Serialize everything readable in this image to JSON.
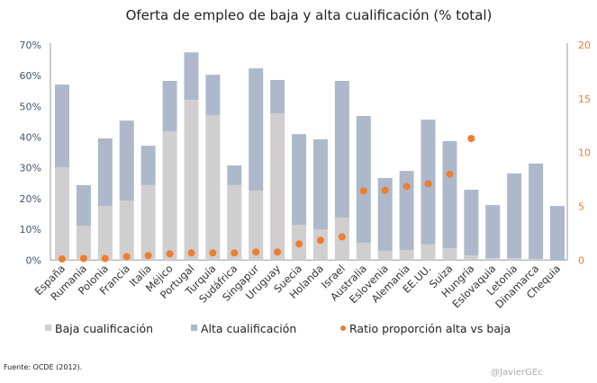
{
  "chart_data": {
    "type": "bar",
    "stacked": true,
    "title": "Oferta de empleo de baja y alta cualificación (% total)",
    "categories": [
      "España",
      "Rumania",
      "Polonia",
      "Francia",
      "Italia",
      "Méjico",
      "Portugal",
      "Turquía",
      "Sudáfrica",
      "Singapur",
      "Uruguay",
      "Suecia",
      "Holanda",
      "Israel",
      "Australia",
      "Eslovenia",
      "Alemania",
      "EE.UU.",
      "Suiza",
      "Hungría",
      "Eslovaquia",
      "Letonia",
      "Dinamarca",
      "Chequia"
    ],
    "series": [
      {
        "name": "Baja cualificación",
        "type": "bar",
        "axis": "left",
        "color": "#d0cece",
        "values": [
          30.2,
          11.2,
          17.6,
          19.4,
          24.4,
          41.9,
          52.1,
          47.2,
          24.4,
          22.6,
          47.7,
          11.5,
          10.0,
          13.8,
          5.6,
          3.0,
          3.3,
          5.1,
          3.9,
          1.5,
          0.7,
          0.7,
          0.4,
          0.0
        ]
      },
      {
        "name": "Alta cualificación",
        "type": "bar",
        "axis": "left",
        "color": "#adb9ca",
        "values": [
          26.9,
          13.2,
          22.0,
          26.0,
          12.8,
          16.4,
          15.5,
          13.1,
          6.4,
          39.8,
          10.9,
          29.5,
          29.3,
          44.5,
          41.3,
          23.7,
          25.7,
          40.6,
          34.8,
          21.4,
          17.2,
          27.5,
          31.0,
          17.6
        ]
      },
      {
        "name": "Ratio proporción alta vs baja",
        "type": "scatter",
        "axis": "right",
        "color": "#ed7d31",
        "values": [
          0.1,
          0.15,
          0.15,
          0.33,
          0.42,
          0.58,
          0.67,
          0.67,
          0.67,
          0.75,
          0.75,
          1.5,
          1.84,
          2.17,
          6.43,
          6.5,
          6.85,
          7.1,
          8.0,
          11.3,
          null,
          null,
          null,
          null
        ]
      }
    ],
    "y_left": {
      "range": [
        0,
        70
      ],
      "ticks": [
        "0%",
        "10%",
        "20%",
        "30%",
        "40%",
        "50%",
        "60%",
        "70%"
      ]
    },
    "y_right": {
      "range": [
        0,
        20
      ],
      "ticks": [
        "0",
        "5",
        "10",
        "15",
        "20"
      ]
    },
    "grid": false,
    "legend_position": "bottom"
  },
  "footer": {
    "source": "Fuente: OCDE (2012).",
    "credit": "@JavierGEc"
  }
}
